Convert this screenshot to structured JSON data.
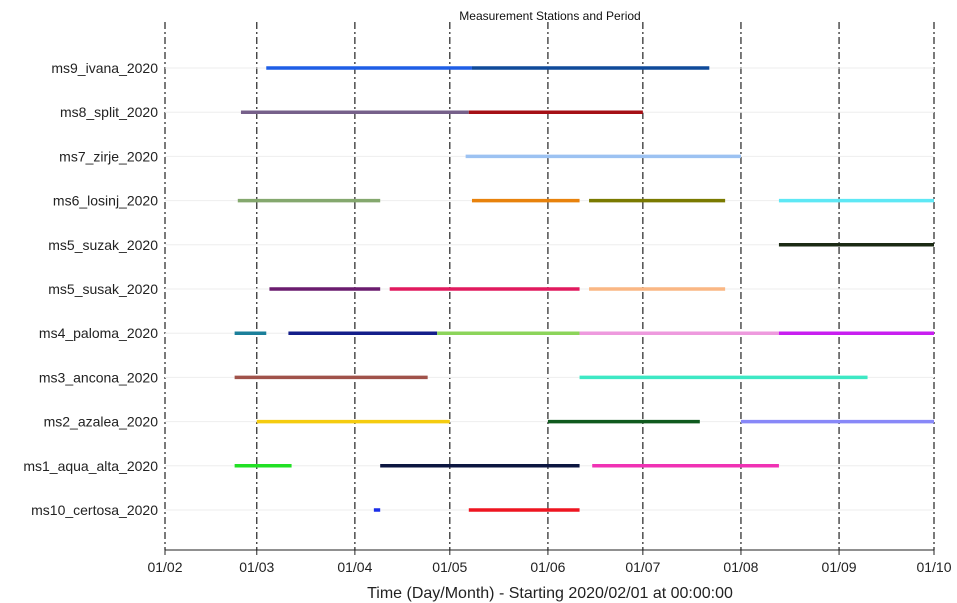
{
  "chart_data": {
    "type": "gantt",
    "title": "Measurement Stations and Period",
    "xlabel": "Time (Day/Month) - Starting 2020/02/01 at 00:00:00",
    "ylabel": "",
    "x_ticks": [
      "01/02",
      "01/03",
      "01/04",
      "01/05",
      "01/06",
      "01/07",
      "01/08",
      "01/09",
      "01/10"
    ],
    "xlim": [
      "2020-02-01",
      "2020-10-01"
    ],
    "grid": "vertical dash-dot lines at each month tick",
    "categories": [
      "ms9_ivana_2020",
      "ms8_split_2020",
      "ms7_zirje_2020",
      "ms6_losinj_2020",
      "ms5_suzak_2020",
      "ms5_susak_2020",
      "ms4_paloma_2020",
      "ms3_ancona_2020",
      "ms2_azalea_2020",
      "ms1_aqua_alta_2020",
      "ms10_certosa_2020"
    ],
    "series": [
      {
        "category": "ms9_ivana_2020",
        "start": "2020-03-04",
        "end": "2020-05-08",
        "color": "#1e5ee6"
      },
      {
        "category": "ms9_ivana_2020",
        "start": "2020-05-08",
        "end": "2020-07-22",
        "color": "#0f4a9a"
      },
      {
        "category": "ms8_split_2020",
        "start": "2020-02-25",
        "end": "2020-05-07",
        "color": "#76608a"
      },
      {
        "category": "ms8_split_2020",
        "start": "2020-05-07",
        "end": "2020-07-01",
        "color": "#a50f15"
      },
      {
        "category": "ms7_zirje_2020",
        "start": "2020-05-06",
        "end": "2020-08-01",
        "color": "#9cc2f2"
      },
      {
        "category": "ms6_losinj_2020",
        "start": "2020-02-24",
        "end": "2020-04-09",
        "color": "#84a86e"
      },
      {
        "category": "ms6_losinj_2020",
        "start": "2020-05-08",
        "end": "2020-06-11",
        "color": "#e8820c"
      },
      {
        "category": "ms6_losinj_2020",
        "start": "2020-06-14",
        "end": "2020-07-27",
        "color": "#7a7a00"
      },
      {
        "category": "ms6_losinj_2020",
        "start": "2020-08-13",
        "end": "2020-10-01",
        "color": "#5ee8f5"
      },
      {
        "category": "ms5_suzak_2020",
        "start": "2020-08-13",
        "end": "2020-10-01",
        "color": "#1b2a14"
      },
      {
        "category": "ms5_susak_2020",
        "start": "2020-03-05",
        "end": "2020-04-09",
        "color": "#6a1c6e"
      },
      {
        "category": "ms5_susak_2020",
        "start": "2020-04-12",
        "end": "2020-06-11",
        "color": "#e11a5e"
      },
      {
        "category": "ms5_susak_2020",
        "start": "2020-06-14",
        "end": "2020-07-27",
        "color": "#fab784"
      },
      {
        "category": "ms4_paloma_2020",
        "start": "2020-02-23",
        "end": "2020-03-04",
        "color": "#1b7f9a"
      },
      {
        "category": "ms4_paloma_2020",
        "start": "2020-03-11",
        "end": "2020-04-27",
        "color": "#141e8a"
      },
      {
        "category": "ms4_paloma_2020",
        "start": "2020-04-27",
        "end": "2020-06-11",
        "color": "#8cd45a"
      },
      {
        "category": "ms4_paloma_2020",
        "start": "2020-06-11",
        "end": "2020-08-13",
        "color": "#ee9ade"
      },
      {
        "category": "ms4_paloma_2020",
        "start": "2020-08-13",
        "end": "2020-10-01",
        "color": "#c81ef0"
      },
      {
        "category": "ms3_ancona_2020",
        "start": "2020-02-23",
        "end": "2020-04-24",
        "color": "#a0524a"
      },
      {
        "category": "ms3_ancona_2020",
        "start": "2020-06-11",
        "end": "2020-09-10",
        "color": "#3de8c4"
      },
      {
        "category": "ms2_azalea_2020",
        "start": "2020-03-01",
        "end": "2020-05-01",
        "color": "#f5cc10"
      },
      {
        "category": "ms2_azalea_2020",
        "start": "2020-06-01",
        "end": "2020-07-19",
        "color": "#0f5a1e"
      },
      {
        "category": "ms2_azalea_2020",
        "start": "2020-08-01",
        "end": "2020-10-01",
        "color": "#8888f8"
      },
      {
        "category": "ms1_aqua_alta_2020",
        "start": "2020-02-23",
        "end": "2020-03-12",
        "color": "#22e025"
      },
      {
        "category": "ms1_aqua_alta_2020",
        "start": "2020-04-09",
        "end": "2020-06-11",
        "color": "#0c1640"
      },
      {
        "category": "ms1_aqua_alta_2020",
        "start": "2020-06-15",
        "end": "2020-08-13",
        "color": "#f032b4"
      },
      {
        "category": "ms10_certosa_2020",
        "start": "2020-04-07",
        "end": "2020-04-09",
        "color": "#1a2ee8"
      },
      {
        "category": "ms10_certosa_2020",
        "start": "2020-05-07",
        "end": "2020-06-11",
        "color": "#ee1520"
      }
    ]
  }
}
